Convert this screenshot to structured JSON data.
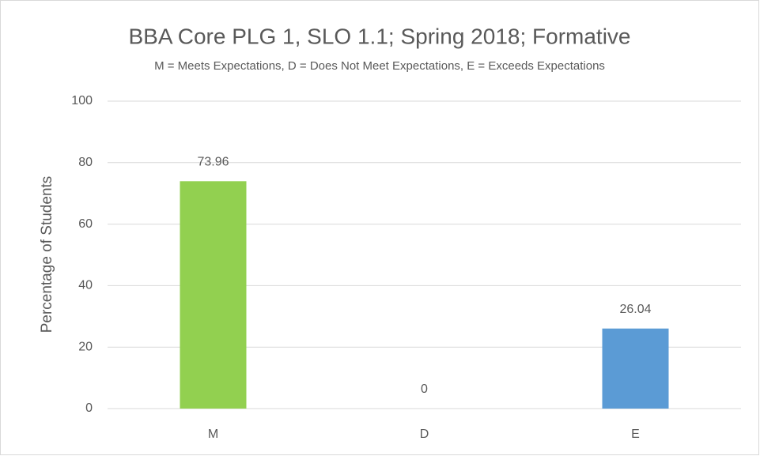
{
  "chart_data": {
    "type": "bar",
    "title": "BBA Core PLG 1, SLO 1.1; Spring 2018; Formative",
    "subtitle": "M = Meets Expectations, D = Does Not Meet Expectations, E = Exceeds Expectations",
    "y_label": "Percentage of Students",
    "categories": [
      "M",
      "D",
      "E"
    ],
    "values": [
      73.96,
      0,
      26.04
    ],
    "colors": [
      "#92d050",
      "#a5a5a5",
      "#5b9bd5"
    ],
    "ylim": [
      0,
      100
    ],
    "yticks": [
      0,
      20,
      40,
      60,
      80,
      100
    ],
    "grid": true
  }
}
